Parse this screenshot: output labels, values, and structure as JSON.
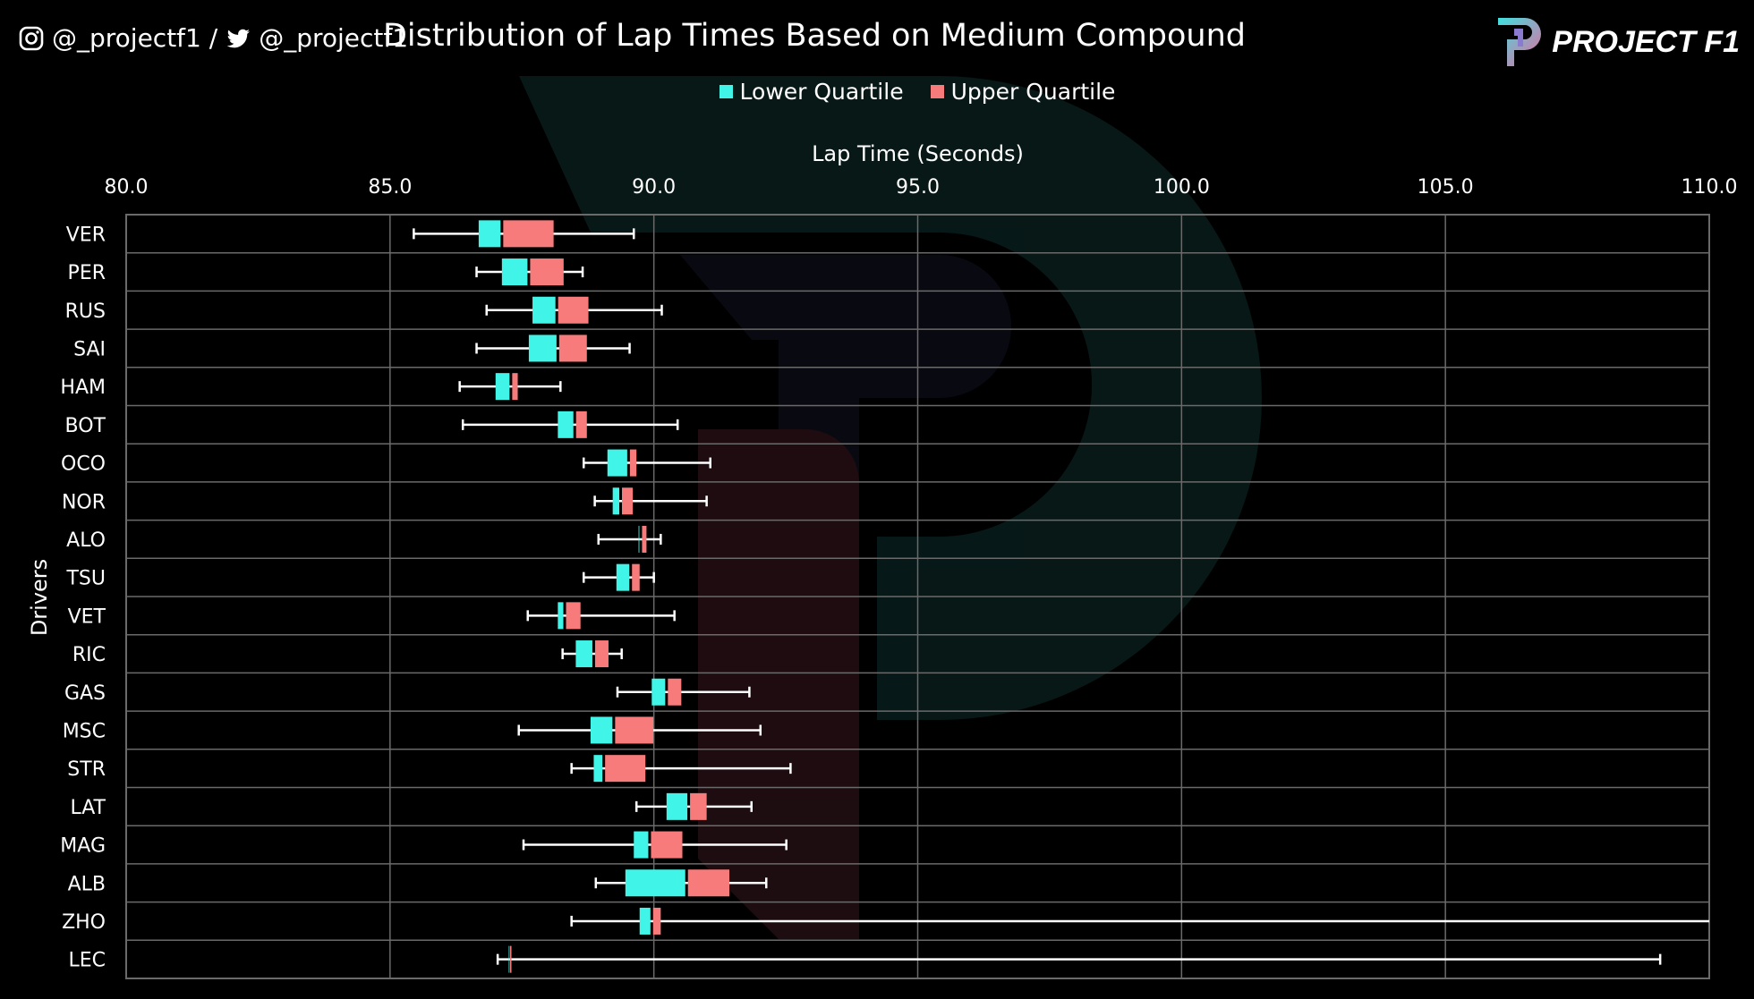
{
  "header": {
    "social_instagram": "@_projectf1 /",
    "social_twitter": "@_projectf1",
    "logo_text": "PROJECT F1"
  },
  "colors": {
    "lower_quartile": "#40f5e8",
    "upper_quartile": "#f87b7b",
    "background": "#000000",
    "whisker": "#ffffff",
    "grid": "#6a6a6a"
  },
  "chart_data": {
    "type": "boxplot-horizontal",
    "title": "Distribution of Lap Times Based on Medium Compound",
    "xlabel": "Lap Time (Seconds)",
    "ylabel": "Drivers",
    "xlim": [
      80,
      110
    ],
    "xticks": [
      "80.0",
      "85.0",
      "90.0",
      "95.0",
      "100.0",
      "105.0",
      "110.0"
    ],
    "xtick_values": [
      80,
      85,
      90,
      95,
      100,
      105,
      110
    ],
    "grid": true,
    "legend": {
      "placement": "top",
      "entries": [
        "Lower Quartile",
        "Upper Quartile"
      ]
    },
    "categories": [
      "VER",
      "PER",
      "RUS",
      "SAI",
      "HAM",
      "BOT",
      "OCO",
      "NOR",
      "ALO",
      "TSU",
      "VET",
      "RIC",
      "GAS",
      "MSC",
      "STR",
      "LAT",
      "MAG",
      "ALB",
      "ZHO",
      "LEC"
    ],
    "boxes": [
      {
        "min": 85.45,
        "q1": 86.68,
        "median": 87.12,
        "q3": 88.1,
        "max": 89.62
      },
      {
        "min": 86.64,
        "q1": 87.12,
        "median": 87.63,
        "q3": 88.29,
        "max": 88.65
      },
      {
        "min": 86.83,
        "q1": 87.7,
        "median": 88.16,
        "q3": 88.76,
        "max": 90.15
      },
      {
        "min": 86.64,
        "q1": 87.63,
        "median": 88.18,
        "q3": 88.73,
        "max": 89.54
      },
      {
        "min": 86.32,
        "q1": 87.0,
        "median": 87.29,
        "q3": 87.42,
        "max": 88.23
      },
      {
        "min": 86.38,
        "q1": 88.18,
        "median": 88.5,
        "q3": 88.73,
        "max": 90.45
      },
      {
        "min": 88.67,
        "q1": 89.12,
        "median": 89.52,
        "q3": 89.67,
        "max": 91.07
      },
      {
        "min": 88.88,
        "q1": 89.22,
        "median": 89.37,
        "q3": 89.6,
        "max": 91.0
      },
      {
        "min": 88.95,
        "q1": 89.71,
        "median": 89.75,
        "q3": 89.86,
        "max": 90.13
      },
      {
        "min": 88.67,
        "q1": 89.29,
        "median": 89.56,
        "q3": 89.73,
        "max": 90.0
      },
      {
        "min": 87.61,
        "q1": 88.18,
        "median": 88.31,
        "q3": 88.61,
        "max": 90.39
      },
      {
        "min": 88.27,
        "q1": 88.52,
        "median": 88.86,
        "q3": 89.14,
        "max": 89.39
      },
      {
        "min": 89.31,
        "q1": 89.96,
        "median": 90.24,
        "q3": 90.52,
        "max": 91.81
      },
      {
        "min": 87.44,
        "q1": 88.8,
        "median": 89.24,
        "q3": 89.99,
        "max": 92.02
      },
      {
        "min": 88.44,
        "q1": 88.86,
        "median": 89.05,
        "q3": 89.84,
        "max": 92.59
      },
      {
        "min": 89.67,
        "q1": 90.24,
        "median": 90.66,
        "q3": 91.0,
        "max": 91.85
      },
      {
        "min": 87.53,
        "q1": 89.62,
        "median": 89.92,
        "q3": 90.54,
        "max": 92.51
      },
      {
        "min": 88.9,
        "q1": 89.46,
        "median": 90.62,
        "q3": 91.43,
        "max": 92.13
      },
      {
        "min": 88.44,
        "q1": 89.73,
        "median": 89.96,
        "q3": 90.13,
        "max": 110.5
      },
      {
        "min": 87.04,
        "q1": 87.25,
        "median": 87.25,
        "q3": 87.27,
        "max": 109.07
      }
    ]
  }
}
